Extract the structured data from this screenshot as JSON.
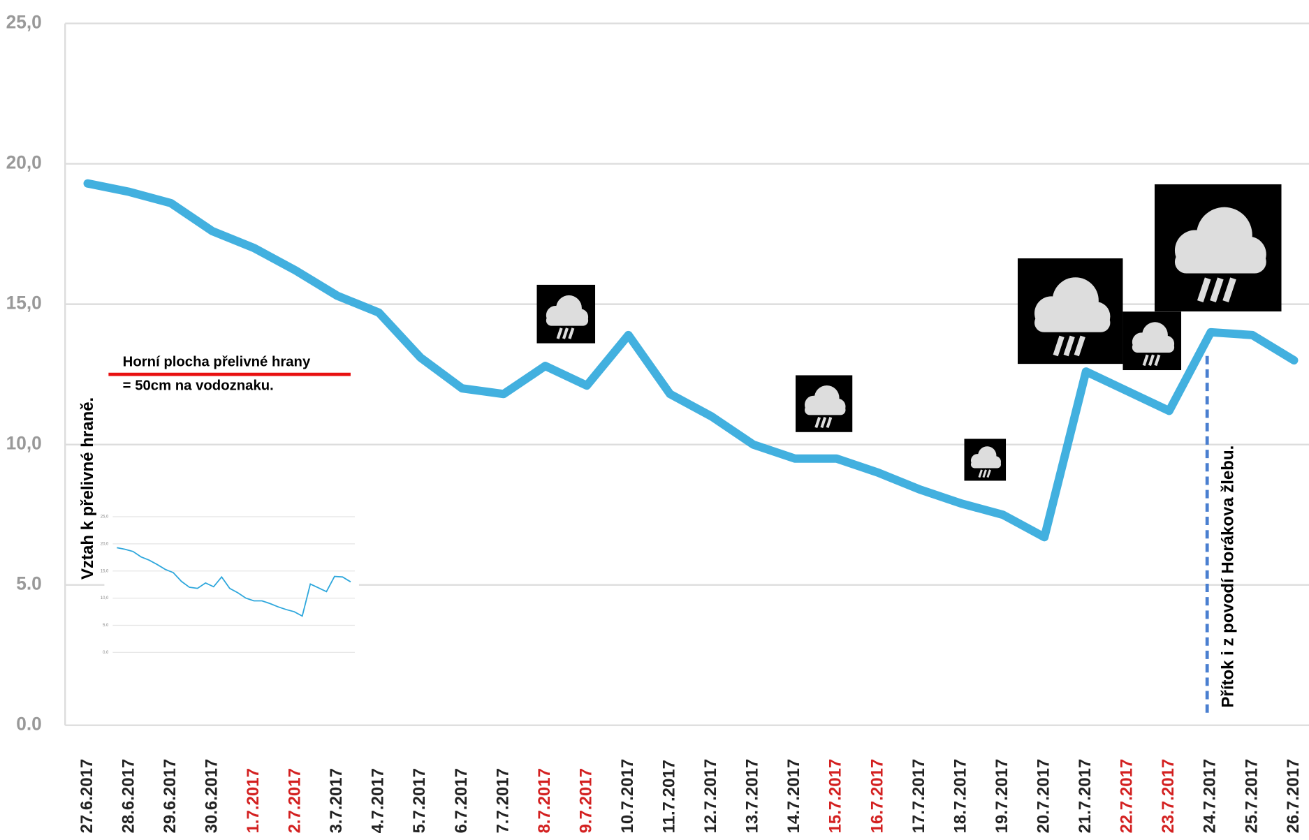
{
  "chart_data": {
    "type": "line",
    "categories": [
      "27.6.2017",
      "28.6.2017",
      "29.6.2017",
      "30.6.2017",
      "1.7.2017",
      "2.7.2017",
      "3.7.2017",
      "4.7.2017",
      "5.7.2017",
      "6.7.2017",
      "7.7.2017",
      "8.7.2017",
      "9.7.2017",
      "10.7.2017",
      "11.7.2017",
      "12.7.2017",
      "13.7.2017",
      "14.7.2017",
      "15.7.2017",
      "16.7.2017",
      "17.7.2017",
      "18.7.2017",
      "19.7.2017",
      "20.7.2017",
      "21.7.2017",
      "22.7.2017",
      "23.7.2017",
      "24.7.2017",
      "25.7.2017",
      "26.7.2017"
    ],
    "category_colors": [
      "#222",
      "#222",
      "#222",
      "#222",
      "#d32020",
      "#d32020",
      "#222",
      "#222",
      "#222",
      "#222",
      "#222",
      "#d32020",
      "#d32020",
      "#222",
      "#222",
      "#222",
      "#222",
      "#222",
      "#d32020",
      "#d32020",
      "#222",
      "#222",
      "#222",
      "#222",
      "#222",
      "#d32020",
      "#d32020",
      "#222",
      "#222",
      "#222"
    ],
    "values": [
      19.3,
      19.0,
      18.6,
      17.6,
      17.0,
      16.2,
      15.3,
      14.7,
      13.1,
      12.0,
      11.8,
      12.8,
      12.1,
      13.9,
      11.8,
      11.0,
      10.0,
      9.5,
      9.5,
      9.0,
      8.4,
      7.9,
      7.5,
      6.7,
      12.6,
      11.9,
      11.2,
      14.0,
      13.9,
      13.0
    ],
    "color": "#2ea7dc",
    "ylim": [
      0,
      25
    ],
    "yticks": [
      {
        "value": 0,
        "label": "0.0"
      },
      {
        "value": 5,
        "label": "5.0"
      },
      {
        "value": 10,
        "label": "10,0"
      },
      {
        "value": 15,
        "label": "15,0"
      },
      {
        "value": 20,
        "label": "20,0"
      },
      {
        "value": 25,
        "label": "25,0"
      }
    ],
    "grid": true,
    "annotations": [
      "Horní plocha přelivné hrany",
      "= 50cm na vodoznaku.",
      "Vztah k přelivné hraně.",
      "Přítok i z povodí Horákova žlebu."
    ]
  }
}
